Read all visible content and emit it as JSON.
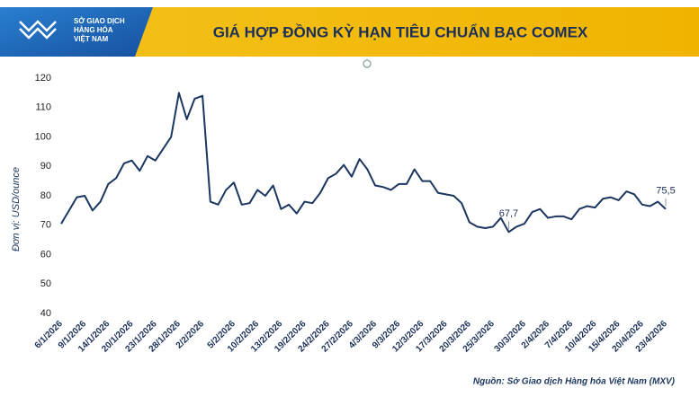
{
  "header": {
    "logo_lines": [
      "SỞ GIAO DỊCH",
      "HÀNG HÓA",
      "VIỆT NAM"
    ]
  },
  "chart_data": {
    "type": "line",
    "title": "GIÁ HỢP ĐỒNG KỲ HẠN TIÊU CHUẨN BẠC COMEX",
    "ylabel": "Đơn vị: USD/ounce",
    "source": "Nguồn: Sở Giao dịch Hàng hóa Việt Nam (MXV)",
    "color": "#1b365f",
    "grid": false,
    "ylim": [
      40,
      120
    ],
    "yticks": [
      40,
      50,
      60,
      70,
      80,
      90,
      100,
      110,
      120
    ],
    "categories": [
      "6/1/2026",
      null,
      null,
      "9/1/2026",
      null,
      null,
      "14/1/2026",
      null,
      null,
      "20/1/2026",
      null,
      null,
      "23/1/2026",
      null,
      null,
      "28/1/2026",
      null,
      null,
      "2/2/2026",
      null,
      null,
      null,
      "5/2/2026",
      null,
      null,
      "10/2/2026",
      null,
      null,
      "13/2/2026",
      null,
      null,
      "19/2/2026",
      null,
      null,
      "24/2/2026",
      null,
      null,
      "27/2/2026",
      null,
      null,
      "4/3/2026",
      null,
      null,
      "9/3/2026",
      null,
      null,
      "12/3/2026",
      null,
      null,
      "17/3/2026",
      null,
      null,
      "20/3/2026",
      null,
      null,
      "25/3/2026",
      null,
      null,
      null,
      "30/3/2026",
      null,
      null,
      "2/4/2026",
      null,
      null,
      "7/4/2026",
      null,
      null,
      "10/4/2026",
      null,
      null,
      "15/4/2026",
      null,
      null,
      "20/4/2026",
      null,
      null,
      "23/4/2026"
    ],
    "values": [
      70.5,
      75,
      79.5,
      80,
      75,
      78,
      84,
      86,
      91,
      92,
      88.5,
      93.5,
      92,
      96,
      100,
      115,
      106,
      113,
      114,
      78,
      77,
      82,
      84.5,
      77,
      77.5,
      82,
      80,
      83.5,
      75.5,
      77,
      74,
      78,
      77.5,
      81,
      86,
      87.5,
      90.5,
      86.5,
      92.5,
      89,
      83.5,
      83,
      82,
      84,
      84,
      89,
      85,
      85,
      81,
      80.5,
      80,
      77.5,
      71,
      69.5,
      69,
      69.5,
      72.5,
      67.7,
      69.5,
      70.5,
      74.5,
      75.5,
      72.5,
      73,
      73,
      72,
      75.5,
      76.5,
      76,
      79,
      79.5,
      78.5,
      81.5,
      80.5,
      77,
      76.5,
      78,
      75.5
    ],
    "value_labels": [
      null,
      null,
      null,
      null,
      null,
      null,
      null,
      null,
      null,
      null,
      null,
      null,
      null,
      null,
      null,
      null,
      null,
      null,
      null,
      null,
      null,
      null,
      null,
      null,
      null,
      null,
      null,
      null,
      null,
      null,
      null,
      null,
      null,
      null,
      null,
      null,
      null,
      null,
      null,
      null,
      null,
      null,
      null,
      null,
      null,
      null,
      null,
      null,
      null,
      null,
      null,
      null,
      null,
      null,
      null,
      null,
      null,
      "67,7",
      null,
      null,
      null,
      null,
      null,
      null,
      null,
      null,
      null,
      null,
      null,
      null,
      null,
      null,
      null,
      null,
      null,
      null,
      null,
      "75,5"
    ]
  }
}
